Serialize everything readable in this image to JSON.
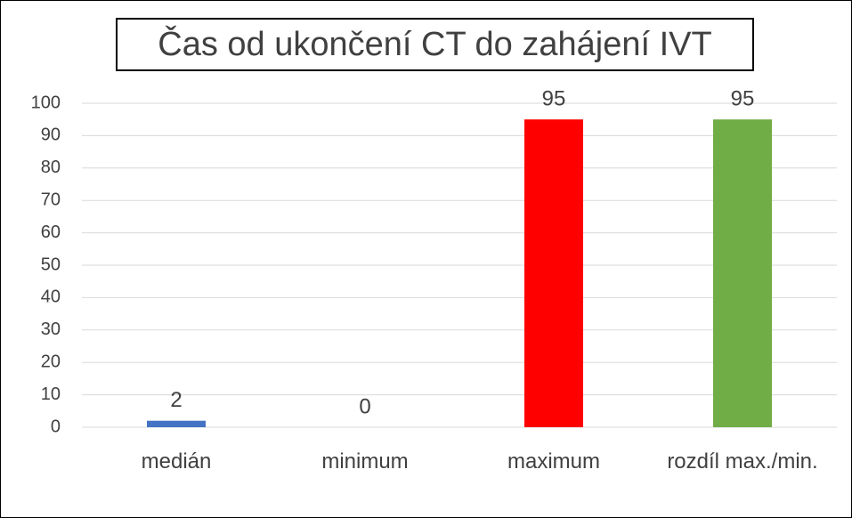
{
  "chart_data": {
    "type": "bar",
    "title": "Čas od ukončení CT do zahájení IVT",
    "categories": [
      "medián",
      "minimum",
      "maximum",
      "rozdíl max./min."
    ],
    "values": [
      2,
      0,
      95,
      95
    ],
    "colors": [
      "#4472c4",
      "#a5a5a5",
      "#ff0000",
      "#70ad47"
    ],
    "ylim": [
      0,
      100
    ],
    "yticks": [
      0,
      10,
      20,
      30,
      40,
      50,
      60,
      70,
      80,
      90,
      100
    ],
    "grid": true
  }
}
